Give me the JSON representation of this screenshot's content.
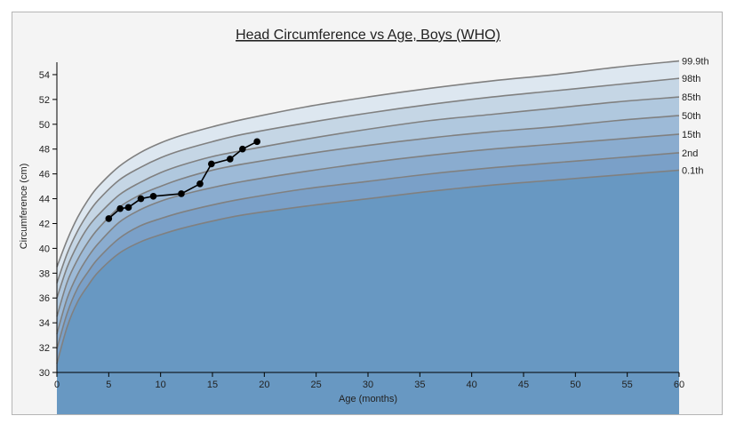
{
  "chart_data": {
    "type": "line",
    "title": "Head Circumference vs Age, Boys (WHO)",
    "xlabel": "Age (months)",
    "ylabel": "Circumference (cm)",
    "xlim": [
      0,
      60
    ],
    "ylim": [
      30,
      55
    ],
    "x_ticks": [
      0,
      5,
      10,
      15,
      20,
      25,
      30,
      35,
      40,
      45,
      50,
      55,
      60
    ],
    "y_ticks": [
      30,
      32,
      34,
      36,
      38,
      40,
      42,
      44,
      46,
      48,
      50,
      52,
      54
    ],
    "percentile_curves": [
      {
        "name": "99.9th",
        "x": [
          0,
          1,
          2,
          3,
          4,
          6,
          8,
          10,
          12,
          15,
          18,
          24,
          30,
          36,
          42,
          48,
          54,
          60
        ],
        "y": [
          38.5,
          40.7,
          42.5,
          43.9,
          45.0,
          46.6,
          47.7,
          48.5,
          49.1,
          49.8,
          50.4,
          51.4,
          52.2,
          52.9,
          53.5,
          54.0,
          54.6,
          55.1
        ]
      },
      {
        "name": "98th",
        "x": [
          0,
          1,
          2,
          3,
          4,
          6,
          8,
          10,
          12,
          15,
          18,
          24,
          30,
          36,
          42,
          48,
          54,
          60
        ],
        "y": [
          37.2,
          39.6,
          41.4,
          42.8,
          43.9,
          45.5,
          46.5,
          47.3,
          47.9,
          48.6,
          49.2,
          50.1,
          50.9,
          51.6,
          52.2,
          52.7,
          53.2,
          53.7
        ]
      },
      {
        "name": "85th",
        "x": [
          0,
          1,
          2,
          3,
          4,
          6,
          8,
          10,
          12,
          15,
          18,
          24,
          30,
          36,
          42,
          48,
          54,
          60
        ],
        "y": [
          36.0,
          38.5,
          40.3,
          41.7,
          42.7,
          44.3,
          45.3,
          46.1,
          46.7,
          47.4,
          47.9,
          48.8,
          49.6,
          50.3,
          50.8,
          51.3,
          51.8,
          52.2
        ]
      },
      {
        "name": "50th",
        "x": [
          0,
          1,
          2,
          3,
          4,
          6,
          8,
          10,
          12,
          15,
          18,
          24,
          30,
          36,
          42,
          48,
          54,
          60
        ],
        "y": [
          34.5,
          37.3,
          39.1,
          40.5,
          41.6,
          43.3,
          44.3,
          45.0,
          45.6,
          46.3,
          46.8,
          47.6,
          48.3,
          48.9,
          49.4,
          49.8,
          50.3,
          50.7
        ]
      },
      {
        "name": "15th",
        "x": [
          0,
          1,
          2,
          3,
          4,
          6,
          8,
          10,
          12,
          15,
          18,
          24,
          30,
          36,
          42,
          48,
          54,
          60
        ],
        "y": [
          33.1,
          36.0,
          37.9,
          39.3,
          40.4,
          42.1,
          43.1,
          43.8,
          44.3,
          44.9,
          45.4,
          46.2,
          46.9,
          47.5,
          48.0,
          48.4,
          48.8,
          49.2
        ]
      },
      {
        "name": "2nd",
        "x": [
          0,
          1,
          2,
          3,
          4,
          6,
          8,
          10,
          12,
          15,
          18,
          24,
          30,
          36,
          42,
          48,
          54,
          60
        ],
        "y": [
          31.9,
          34.8,
          36.8,
          38.1,
          39.2,
          40.8,
          41.8,
          42.4,
          42.9,
          43.5,
          44.0,
          44.8,
          45.4,
          46.0,
          46.5,
          46.9,
          47.3,
          47.7
        ]
      },
      {
        "name": "0.1th",
        "x": [
          0,
          1,
          2,
          3,
          4,
          6,
          8,
          10,
          12,
          15,
          18,
          24,
          30,
          36,
          42,
          48,
          54,
          60
        ],
        "y": [
          30.7,
          33.7,
          35.7,
          37.0,
          38.1,
          39.6,
          40.5,
          41.1,
          41.6,
          42.2,
          42.7,
          43.4,
          44.0,
          44.6,
          45.1,
          45.5,
          45.9,
          46.3
        ]
      }
    ],
    "band_colors": [
      "#dde7f0",
      "#c5d6e5",
      "#b0c8de",
      "#9dbad7",
      "#8aaccf",
      "#7aa0c8",
      "#6898c2"
    ],
    "line_color": "#808080",
    "series": [
      {
        "name": "",
        "color": "#000000",
        "x": [
          5,
          6.1,
          6.9,
          8.1,
          9.3,
          12,
          13.8,
          14.9,
          16.7,
          17.9,
          19.3
        ],
        "y": [
          42.4,
          43.2,
          43.3,
          44.0,
          44.2,
          44.4,
          45.2,
          46.8,
          47.2,
          48.0,
          48.6
        ]
      }
    ],
    "grid": false,
    "legend": "right-edge-labels"
  }
}
